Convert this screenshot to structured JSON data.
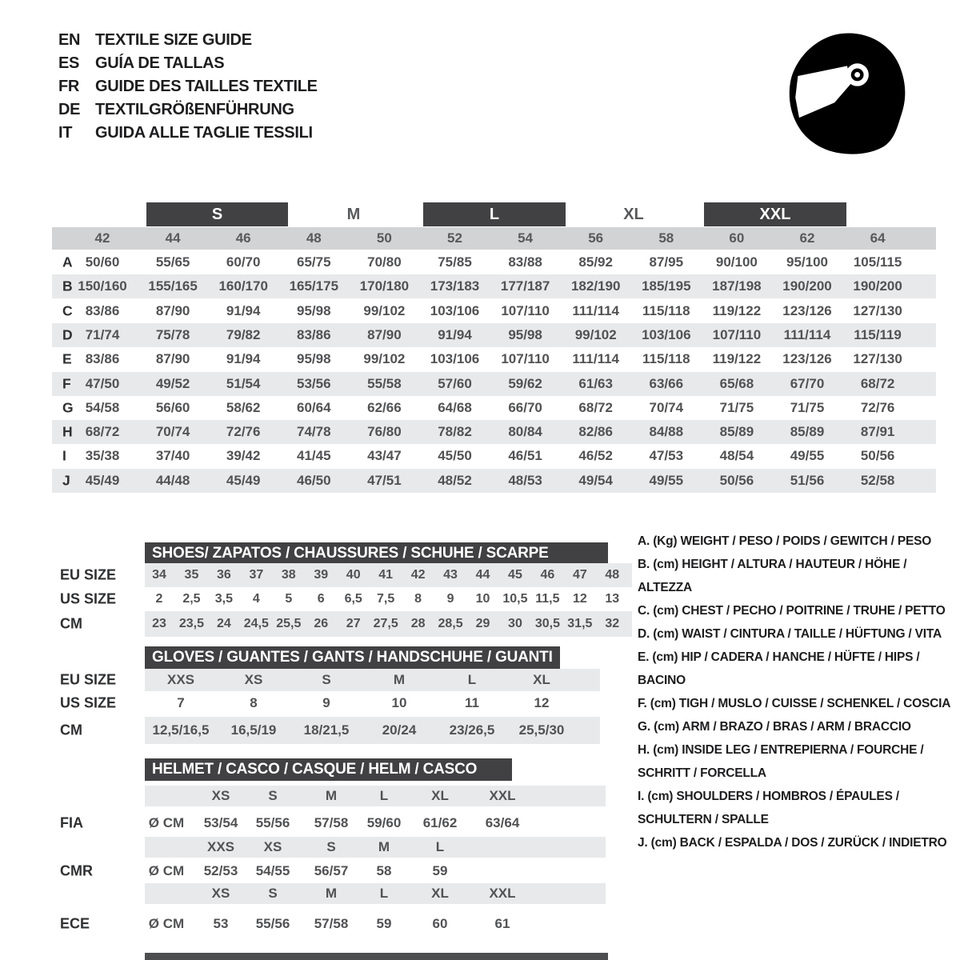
{
  "header": {
    "languages": [
      {
        "code": "EN",
        "title": "TEXTILE SIZE GUIDE"
      },
      {
        "code": "ES",
        "title": "GUÍA DE TALLAS"
      },
      {
        "code": "FR",
        "title": "GUIDE DES TAILLES TEXTILE"
      },
      {
        "code": "DE",
        "title": "TEXTILGRÖßENFÜHRUNG"
      },
      {
        "code": "IT",
        "title": "GUIDA ALLE TAGLIE TESSILI"
      }
    ]
  },
  "size_table": {
    "size_groups": [
      {
        "label": "S",
        "boxed": true
      },
      {
        "label": "M",
        "boxed": false
      },
      {
        "label": "L",
        "boxed": true
      },
      {
        "label": "XL",
        "boxed": false
      },
      {
        "label": "XXL",
        "boxed": true
      }
    ],
    "columns": [
      "42",
      "44",
      "46",
      "48",
      "50",
      "52",
      "54",
      "56",
      "58",
      "60",
      "62",
      "64"
    ],
    "rows": [
      {
        "letter": "A",
        "values": [
          "50/60",
          "55/65",
          "60/70",
          "65/75",
          "70/80",
          "75/85",
          "83/88",
          "85/92",
          "87/95",
          "90/100",
          "95/100",
          "105/115"
        ]
      },
      {
        "letter": "B",
        "values": [
          "150/160",
          "155/165",
          "160/170",
          "165/175",
          "170/180",
          "173/183",
          "177/187",
          "182/190",
          "185/195",
          "187/198",
          "190/200",
          "190/200"
        ]
      },
      {
        "letter": "C",
        "values": [
          "83/86",
          "87/90",
          "91/94",
          "95/98",
          "99/102",
          "103/106",
          "107/110",
          "111/114",
          "115/118",
          "119/122",
          "123/126",
          "127/130"
        ]
      },
      {
        "letter": "D",
        "values": [
          "71/74",
          "75/78",
          "79/82",
          "83/86",
          "87/90",
          "91/94",
          "95/98",
          "99/102",
          "103/106",
          "107/110",
          "111/114",
          "115/119"
        ]
      },
      {
        "letter": "E",
        "values": [
          "83/86",
          "87/90",
          "91/94",
          "95/98",
          "99/102",
          "103/106",
          "107/110",
          "111/114",
          "115/118",
          "119/122",
          "123/126",
          "127/130"
        ]
      },
      {
        "letter": "F",
        "values": [
          "47/50",
          "49/52",
          "51/54",
          "53/56",
          "55/58",
          "57/60",
          "59/62",
          "61/63",
          "63/66",
          "65/68",
          "67/70",
          "68/72"
        ]
      },
      {
        "letter": "G",
        "values": [
          "54/58",
          "56/60",
          "58/62",
          "60/64",
          "62/66",
          "64/68",
          "66/70",
          "68/72",
          "70/74",
          "71/75",
          "71/75",
          "72/76"
        ]
      },
      {
        "letter": "H",
        "values": [
          "68/72",
          "70/74",
          "72/76",
          "74/78",
          "76/80",
          "78/82",
          "80/84",
          "82/86",
          "84/88",
          "85/89",
          "85/89",
          "87/91"
        ]
      },
      {
        "letter": "I",
        "values": [
          "35/38",
          "37/40",
          "39/42",
          "41/45",
          "43/47",
          "45/50",
          "46/51",
          "46/52",
          "47/53",
          "48/54",
          "49/55",
          "50/56"
        ]
      },
      {
        "letter": "J",
        "values": [
          "45/49",
          "44/48",
          "45/49",
          "46/50",
          "47/51",
          "48/52",
          "48/53",
          "49/54",
          "49/55",
          "50/56",
          "51/56",
          "52/58"
        ]
      }
    ]
  },
  "shoes": {
    "title": "SHOES/ ZAPATOS / CHAUSSURES / SCHUHE / SCARPE",
    "rows": [
      {
        "label": "EU SIZE",
        "values": [
          "34",
          "35",
          "36",
          "37",
          "38",
          "39",
          "40",
          "41",
          "42",
          "43",
          "44",
          "45",
          "46",
          "47",
          "48"
        ]
      },
      {
        "label": "US SIZE",
        "values": [
          "2",
          "2,5",
          "3,5",
          "4",
          "5",
          "6",
          "6,5",
          "7,5",
          "8",
          "9",
          "10",
          "10,5",
          "11,5",
          "12",
          "13"
        ]
      },
      {
        "label": "CM",
        "values": [
          "23",
          "23,5",
          "24",
          "24,5",
          "25,5",
          "26",
          "27",
          "27,5",
          "28",
          "28,5",
          "29",
          "30",
          "30,5",
          "31,5",
          "32"
        ]
      }
    ]
  },
  "gloves": {
    "title": "GLOVES / GUANTES / GANTS / HANDSCHUHE / GUANTI",
    "rows": [
      {
        "label": "EU SIZE",
        "values": [
          "XXS",
          "XS",
          "S",
          "M",
          "L",
          "XL"
        ]
      },
      {
        "label": "US SIZE",
        "values": [
          "7",
          "8",
          "9",
          "10",
          "11",
          "12"
        ]
      },
      {
        "label": "CM",
        "values": [
          "12,5/16,5",
          "16,5/19",
          "18/21,5",
          "20/24",
          "23/26,5",
          "25,5/30"
        ]
      }
    ]
  },
  "helmet": {
    "title": "HELMET / CASCO / CASQUE / HELM / CASCO",
    "sections": [
      {
        "label": "FIA",
        "unit": "Ø CM",
        "sizes": [
          "XS",
          "S",
          "M",
          "L",
          "XL",
          "XXL"
        ],
        "values": [
          "53/54",
          "55/56",
          "57/58",
          "59/60",
          "61/62",
          "63/64"
        ]
      },
      {
        "label": "CMR",
        "unit": "Ø CM",
        "sizes": [
          "XXS",
          "XS",
          "S",
          "M",
          "L"
        ],
        "values": [
          "52/53",
          "54/55",
          "56/57",
          "58",
          "59"
        ]
      },
      {
        "label": "ECE",
        "unit": "Ø CM",
        "sizes": [
          "XS",
          "S",
          "M",
          "L",
          "XL",
          "XXL"
        ],
        "values": [
          "53",
          "55/56",
          "57/58",
          "59",
          "60",
          "61"
        ]
      }
    ]
  },
  "legend": {
    "items": [
      "A. (Kg) WEIGHT / PESO / POIDS / GEWITCH / PESO",
      "B. (cm) HEIGHT / ALTURA / HAUTEUR / HÖHE / ALTEZZA",
      "C. (cm) CHEST / PECHO / POITRINE / TRUHE / PETTO",
      "D. (cm) WAIST / CINTURA / TAILLE / HÜFTUNG / VITA",
      "E. (cm) HIP / CADERA / HANCHE / HÜFTE / HIPS / BACINO",
      "F. (cm) TIGH / MUSLO / CUISSE / SCHENKEL / COSCIA",
      "G. (cm) ARM / BRAZO / BRAS / ARM / BRACCIO",
      "H. (cm) INSIDE LEG / ENTREPIERNA / FOURCHE / SCHRITT / FORCELLA",
      "I. (cm) SHOULDERS / HOMBROS / ÉPAULES / SCHULTERN / SPALLE",
      "J. (cm) BACK / ESPALDA / DOS / ZURÜCK / INDIETRO"
    ]
  },
  "colors": {
    "bar_dark": "#414042",
    "band_gray": "#d2d3d5",
    "row_alt_gray": "#e8e9ea",
    "text_dark": "#1d1d1f",
    "text_value": "#515254"
  }
}
